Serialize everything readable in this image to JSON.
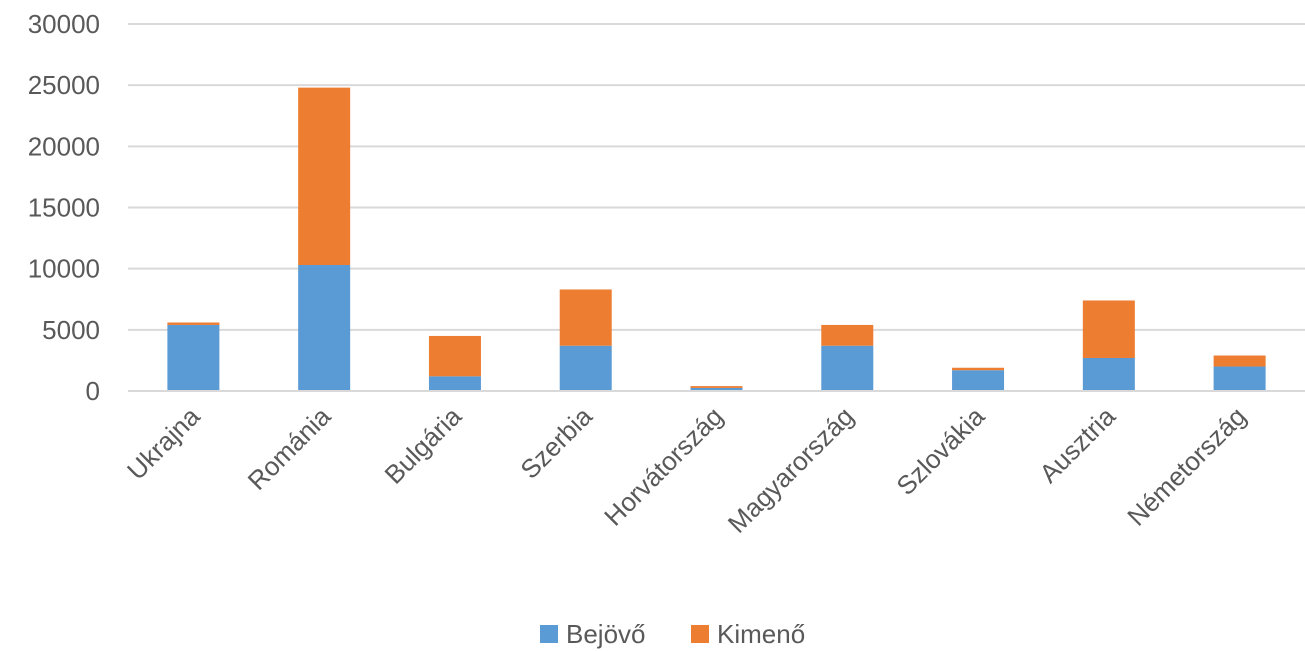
{
  "chart_data": {
    "type": "bar",
    "stacked": true,
    "categories": [
      "Ukrajna",
      "Románia",
      "Bulgária",
      "Szerbia",
      "Horvátország",
      "Magyarország",
      "Szlovákia",
      "Ausztria",
      "Németország"
    ],
    "series": [
      {
        "name": "Bejövő",
        "color": "#5B9BD5",
        "values": [
          5400,
          10300,
          1200,
          3700,
          250,
          3700,
          1700,
          2700,
          2000
        ]
      },
      {
        "name": "Kimenő",
        "color": "#ED7D31",
        "values": [
          200,
          14500,
          3300,
          4600,
          150,
          1700,
          200,
          4700,
          900
        ]
      }
    ],
    "ylim": [
      0,
      30000
    ],
    "yticks": [
      0,
      5000,
      10000,
      15000,
      20000,
      25000,
      30000
    ],
    "grid": true,
    "legend_position": "bottom"
  }
}
